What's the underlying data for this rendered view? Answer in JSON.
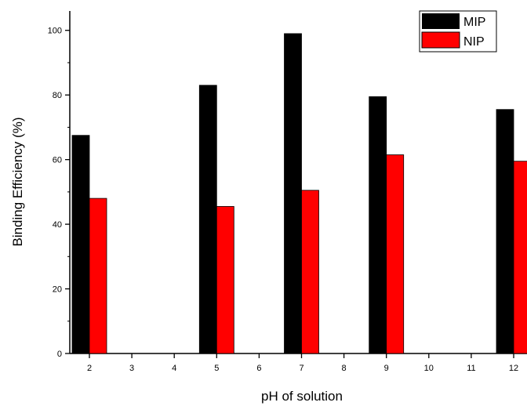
{
  "chart_data": {
    "type": "bar",
    "categories": [
      "2",
      "3",
      "4",
      "5",
      "6",
      "7",
      "8",
      "9",
      "10",
      "11",
      "12"
    ],
    "series": [
      {
        "name": "MIP",
        "color": "#000000",
        "values": [
          67.5,
          null,
          null,
          83,
          null,
          99,
          null,
          79.5,
          null,
          null,
          75.5
        ]
      },
      {
        "name": "NIP",
        "color": "#ff0000",
        "values": [
          48,
          null,
          null,
          45.5,
          null,
          50.5,
          null,
          61.5,
          null,
          null,
          59.5
        ]
      }
    ],
    "xlabel": "pH of solution",
    "ylabel": "Binding Efficiency (%)",
    "ylim": [
      0,
      106
    ],
    "yticks": [
      0,
      20,
      40,
      60,
      80,
      100
    ],
    "grid": false,
    "legend_position": "top-right"
  }
}
